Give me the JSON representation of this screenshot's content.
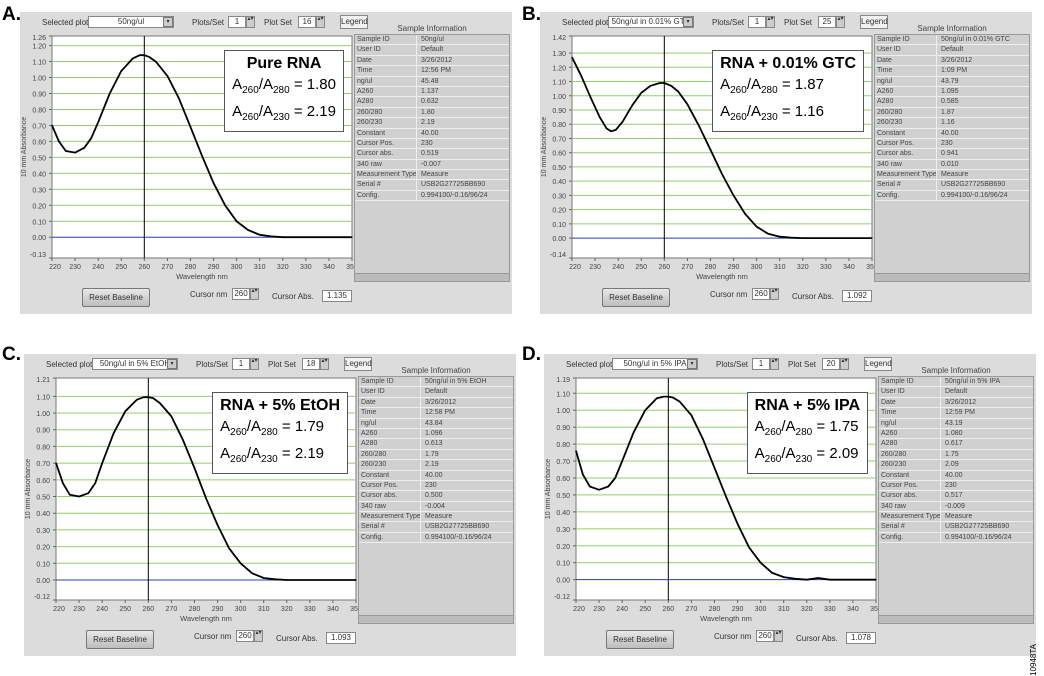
{
  "labels": {
    "selected_plot": "Selected plot",
    "plots_per_set": "Plots/Set",
    "plot_set": "Plot Set",
    "legend": "Legend",
    "reset_baseline": "Reset Baseline",
    "cursor_nm": "Cursor nm",
    "cursor_abs": "Cursor Abs.",
    "xlabel": "Wavelength nm",
    "ylabel": "10 mm Absorbance",
    "sample_info": "Sample Information",
    "ratio_letter": "A",
    "figure_code": "10948TA"
  },
  "colors": {
    "curve": "#000000",
    "grid": "#8fd06a",
    "baseline": "#1f3fbf",
    "cursor": "#000000"
  },
  "chart_data": [
    {
      "type": "line",
      "panel_label": "A.",
      "selected_plot": "50ng/ul",
      "plots_per_set": "1",
      "plot_set": "16",
      "cursor_nm": "260",
      "cursor_abs": "1.135",
      "annotation": {
        "title": "Pure RNA",
        "ratios": [
          {
            "num": "260",
            "den": "280",
            "value": "1.80"
          },
          {
            "num": "260",
            "den": "230",
            "value": "2.19"
          }
        ]
      },
      "xlim": [
        220,
        350
      ],
      "ylim": [
        -0.13,
        1.26
      ],
      "x_ticks": [
        "220",
        "230",
        "240",
        "250",
        "260",
        "270",
        "280",
        "290",
        "300",
        "310",
        "320",
        "330",
        "340",
        "350"
      ],
      "y_ticks": [
        "1.26",
        "1.20",
        "1.10",
        "1.00",
        "0.90",
        "0.80",
        "0.70",
        "0.60",
        "0.50",
        "0.40",
        "0.30",
        "0.20",
        "0.10",
        "0.00",
        "-0.13"
      ],
      "x": [
        220,
        223,
        226,
        230,
        234,
        237,
        240,
        245,
        250,
        255,
        258,
        260,
        262,
        265,
        270,
        275,
        280,
        285,
        290,
        295,
        300,
        305,
        310,
        315,
        320,
        330,
        340,
        350
      ],
      "y": [
        0.7,
        0.6,
        0.54,
        0.53,
        0.56,
        0.62,
        0.72,
        0.9,
        1.04,
        1.12,
        1.14,
        1.14,
        1.13,
        1.1,
        1.01,
        0.87,
        0.69,
        0.51,
        0.34,
        0.2,
        0.1,
        0.045,
        0.015,
        0.005,
        0.0,
        0.0,
        0.0,
        0.0
      ],
      "table": [
        [
          "Sample ID",
          "50ng/ul"
        ],
        [
          "User ID",
          "Default"
        ],
        [
          "Date",
          "3/26/2012"
        ],
        [
          "Time",
          "12:56 PM"
        ],
        [
          "ng/ul",
          "45.48"
        ],
        [
          "A260",
          "1.137"
        ],
        [
          "A280",
          "0.632"
        ],
        [
          "260/280",
          "1.80"
        ],
        [
          "260/230",
          "2.19"
        ],
        [
          "Constant",
          "40.00"
        ],
        [
          "Cursor Pos.",
          "230"
        ],
        [
          "Cursor abs.",
          "0.519"
        ],
        [
          "340 raw",
          "-0.007"
        ],
        [
          "Measurement Type",
          "Measure"
        ],
        [
          "Serial #",
          "USB2G27725BB690"
        ],
        [
          "Config.",
          "0.994100/-0.16/96/24"
        ]
      ]
    },
    {
      "type": "line",
      "panel_label": "B.",
      "selected_plot": "50ng/ul in 0.01% GTC",
      "plots_per_set": "1",
      "plot_set": "25",
      "cursor_nm": "260",
      "cursor_abs": "1.092",
      "annotation": {
        "title": "RNA + 0.01% GTC",
        "ratios": [
          {
            "num": "260",
            "den": "280",
            "value": "1.87"
          },
          {
            "num": "260",
            "den": "230",
            "value": "1.16"
          }
        ]
      },
      "xlim": [
        220,
        350
      ],
      "ylim": [
        -0.14,
        1.42
      ],
      "x_ticks": [
        "220",
        "230",
        "240",
        "250",
        "260",
        "270",
        "280",
        "290",
        "300",
        "310",
        "320",
        "330",
        "340",
        "350"
      ],
      "y_ticks": [
        "1.42",
        "1.30",
        "1.20",
        "1.10",
        "1.00",
        "0.90",
        "0.80",
        "0.70",
        "0.60",
        "0.50",
        "0.40",
        "0.30",
        "0.20",
        "0.10",
        "0.00",
        "-0.14"
      ],
      "x": [
        220,
        224,
        228,
        232,
        235,
        237,
        239,
        242,
        246,
        250,
        254,
        258,
        260,
        263,
        266,
        270,
        275,
        280,
        285,
        290,
        295,
        300,
        305,
        310,
        315,
        320,
        330,
        340,
        350
      ],
      "y": [
        1.27,
        1.14,
        0.99,
        0.85,
        0.77,
        0.75,
        0.76,
        0.82,
        0.93,
        1.02,
        1.07,
        1.09,
        1.09,
        1.07,
        1.03,
        0.94,
        0.79,
        0.62,
        0.45,
        0.3,
        0.17,
        0.08,
        0.03,
        0.01,
        0.003,
        0.0,
        0.0,
        0.0,
        0.0
      ],
      "table": [
        [
          "Sample ID",
          "50ng/ul in 0.01% GTC"
        ],
        [
          "User ID",
          "Default"
        ],
        [
          "Date",
          "3/26/2012"
        ],
        [
          "Time",
          "1:09 PM"
        ],
        [
          "ng/ul",
          "43.79"
        ],
        [
          "A260",
          "1.095"
        ],
        [
          "A280",
          "0.585"
        ],
        [
          "260/280",
          "1.87"
        ],
        [
          "260/230",
          "1.16"
        ],
        [
          "Constant",
          "40.00"
        ],
        [
          "Cursor Pos.",
          "230"
        ],
        [
          "Cursor abs.",
          "0.941"
        ],
        [
          "340 raw",
          "0.010"
        ],
        [
          "Measurement Type",
          "Measure"
        ],
        [
          "Serial #",
          "USB2G27725BB690"
        ],
        [
          "Config.",
          "0.994100/-0.16/96/24"
        ]
      ]
    },
    {
      "type": "line",
      "panel_label": "C.",
      "selected_plot": "50ng/ul in 5% EtOH",
      "plots_per_set": "1",
      "plot_set": "18",
      "cursor_nm": "260",
      "cursor_abs": "1.093",
      "annotation": {
        "title": "RNA + 5% EtOH",
        "ratios": [
          {
            "num": "260",
            "den": "280",
            "value": "1.79"
          },
          {
            "num": "260",
            "den": "230",
            "value": "2.19"
          }
        ]
      },
      "xlim": [
        220,
        350
      ],
      "ylim": [
        -0.12,
        1.21
      ],
      "x_ticks": [
        "220",
        "230",
        "240",
        "250",
        "260",
        "270",
        "280",
        "290",
        "300",
        "310",
        "320",
        "330",
        "340",
        "350"
      ],
      "y_ticks": [
        "1.21",
        "1.10",
        "1.00",
        "0.90",
        "0.80",
        "0.70",
        "0.60",
        "0.50",
        "0.40",
        "0.30",
        "0.20",
        "0.10",
        "0.00",
        "-0.12"
      ],
      "x": [
        220,
        223,
        226,
        230,
        234,
        237,
        240,
        245,
        250,
        255,
        258,
        260,
        262,
        265,
        270,
        275,
        280,
        285,
        290,
        295,
        300,
        305,
        310,
        315,
        320,
        330,
        340,
        350
      ],
      "y": [
        0.7,
        0.58,
        0.51,
        0.5,
        0.52,
        0.58,
        0.7,
        0.88,
        1.01,
        1.08,
        1.095,
        1.095,
        1.09,
        1.06,
        0.98,
        0.84,
        0.67,
        0.49,
        0.33,
        0.19,
        0.1,
        0.04,
        0.012,
        0.004,
        0.0,
        0.0,
        0.0,
        0.0
      ],
      "table": [
        [
          "Sample ID",
          "50ng/ul in 5% EtOH"
        ],
        [
          "User ID",
          "Default"
        ],
        [
          "Date",
          "3/26/2012"
        ],
        [
          "Time",
          "12:58 PM"
        ],
        [
          "ng/ul",
          "43.84"
        ],
        [
          "A260",
          "1.096"
        ],
        [
          "A280",
          "0.613"
        ],
        [
          "260/280",
          "1.79"
        ],
        [
          "260/230",
          "2.19"
        ],
        [
          "Constant",
          "40.00"
        ],
        [
          "Cursor Pos.",
          "230"
        ],
        [
          "Cursor abs.",
          "0.500"
        ],
        [
          "340 raw",
          "-0.004"
        ],
        [
          "Measurement Type",
          "Measure"
        ],
        [
          "Serial #",
          "USB2G27725BB690"
        ],
        [
          "Config.",
          "0.994100/-0.16/96/24"
        ]
      ]
    },
    {
      "type": "line",
      "panel_label": "D.",
      "selected_plot": "50ng/ul in 5% IPA",
      "plots_per_set": "1",
      "plot_set": "20",
      "cursor_nm": "260",
      "cursor_abs": "1.078",
      "annotation": {
        "title": "RNA + 5% IPA",
        "ratios": [
          {
            "num": "260",
            "den": "280",
            "value": "1.75"
          },
          {
            "num": "260",
            "den": "230",
            "value": "2.09"
          }
        ]
      },
      "xlim": [
        220,
        350
      ],
      "ylim": [
        -0.12,
        1.19
      ],
      "x_ticks": [
        "220",
        "230",
        "240",
        "250",
        "260",
        "270",
        "280",
        "290",
        "300",
        "310",
        "320",
        "330",
        "340",
        "350"
      ],
      "y_ticks": [
        "1.19",
        "1.10",
        "1.00",
        "0.90",
        "0.80",
        "0.70",
        "0.60",
        "0.50",
        "0.40",
        "0.30",
        "0.20",
        "0.10",
        "0.00",
        "-0.12"
      ],
      "x": [
        220,
        223,
        226,
        230,
        234,
        237,
        240,
        245,
        250,
        255,
        258,
        260,
        262,
        265,
        270,
        275,
        280,
        285,
        290,
        295,
        300,
        305,
        310,
        315,
        320,
        325,
        330,
        340,
        350
      ],
      "y": [
        0.76,
        0.62,
        0.55,
        0.53,
        0.55,
        0.6,
        0.7,
        0.87,
        1.0,
        1.07,
        1.08,
        1.08,
        1.075,
        1.05,
        0.97,
        0.83,
        0.66,
        0.49,
        0.33,
        0.19,
        0.1,
        0.04,
        0.015,
        0.005,
        0.0,
        0.01,
        0.0,
        0.0,
        0.0
      ],
      "table": [
        [
          "Sample ID",
          "50ng/ul in 5% IPA"
        ],
        [
          "User ID",
          "Default"
        ],
        [
          "Date",
          "3/26/2012"
        ],
        [
          "Time",
          "12:59 PM"
        ],
        [
          "ng/ul",
          "43.19"
        ],
        [
          "A260",
          "1.080"
        ],
        [
          "A280",
          "0.617"
        ],
        [
          "260/280",
          "1.75"
        ],
        [
          "260/230",
          "2.09"
        ],
        [
          "Constant",
          "40.00"
        ],
        [
          "Cursor Pos.",
          "230"
        ],
        [
          "Cursor abs.",
          "0.517"
        ],
        [
          "340 raw",
          "-0.009"
        ],
        [
          "Measurement Type",
          "Measure"
        ],
        [
          "Serial #",
          "USB2G27725BB690"
        ],
        [
          "Config.",
          "0.994100/-0.16/96/24"
        ]
      ]
    }
  ]
}
